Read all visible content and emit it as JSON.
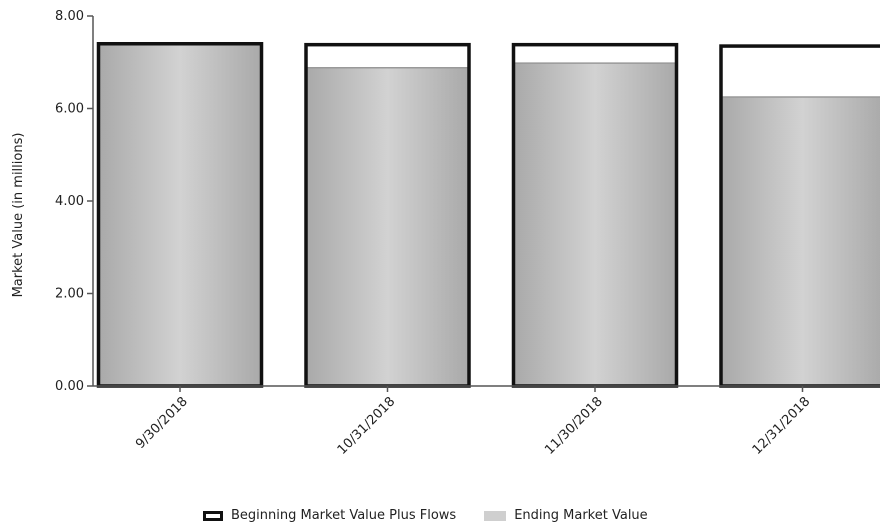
{
  "chart_data": {
    "type": "bar",
    "categories": [
      "9/30/2018",
      "10/31/2018",
      "11/30/2018",
      "12/31/2018"
    ],
    "series": [
      {
        "name": "Beginning Market Value Plus Flows",
        "values": [
          7.4,
          7.38,
          7.38,
          7.35
        ],
        "style": "outline"
      },
      {
        "name": "Ending Market Value",
        "values": [
          7.4,
          6.88,
          6.98,
          6.25
        ],
        "style": "fill"
      }
    ],
    "ylabel": "Market Value (in millions)",
    "xlabel": "",
    "ylim": [
      0,
      8
    ],
    "yticks": [
      "0.00",
      "2.00",
      "4.00",
      "6.00",
      "8.00"
    ],
    "grid": false,
    "legend_position": "bottom",
    "colors": {
      "outline": "#111111",
      "fill": "#bdbdbd",
      "fill_light": "#d6d6d6",
      "axis": "#555555"
    }
  }
}
